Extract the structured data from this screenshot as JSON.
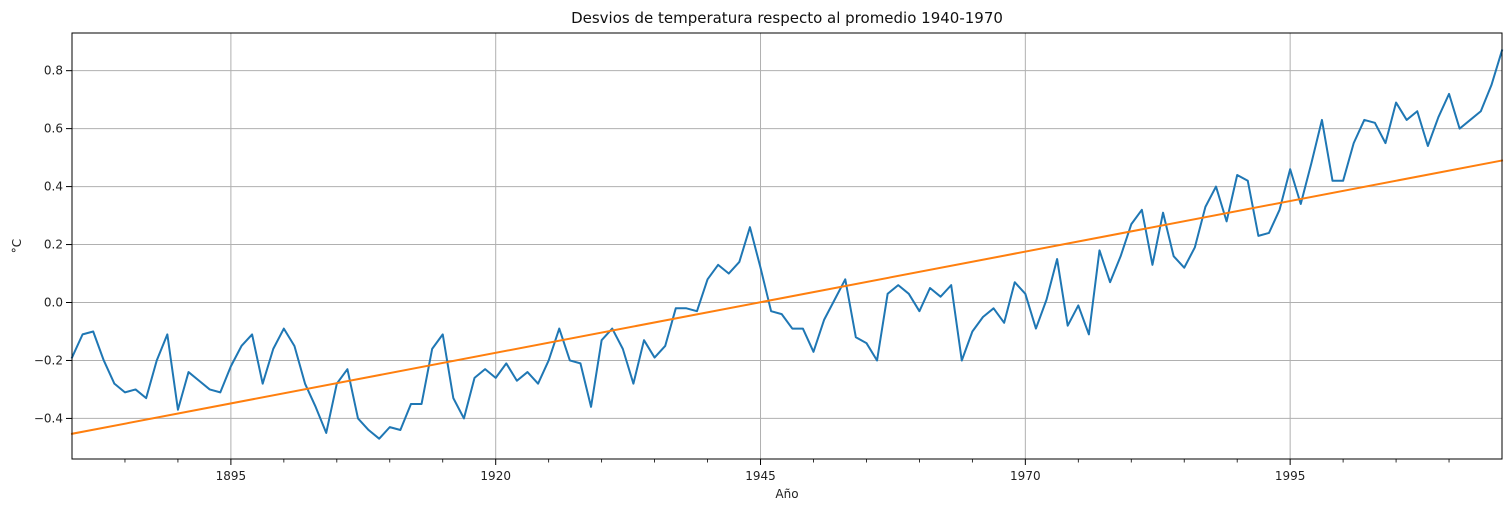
{
  "chart_data": {
    "type": "line",
    "title": "Desvios de temperatura respecto al promedio 1940-1970",
    "xlabel": "Año",
    "ylabel": "°C",
    "xlim": [
      1880,
      2015
    ],
    "ylim": [
      -0.54,
      0.93
    ],
    "grid": true,
    "legend": "none",
    "x_major_ticks": [
      1895,
      1920,
      1945,
      1970,
      1995
    ],
    "x_minor_ticks": [
      1885,
      1890,
      1900,
      1905,
      1910,
      1915,
      1925,
      1930,
      1935,
      1940,
      1950,
      1955,
      1960,
      1965,
      1975,
      1980,
      1985,
      1990,
      2000,
      2005,
      2010
    ],
    "y_ticks": [
      -0.4,
      -0.2,
      0.0,
      0.2,
      0.4,
      0.6,
      0.8
    ],
    "y_tick_labels": [
      "−0.4",
      "−0.2",
      "0.0",
      "0.2",
      "0.4",
      "0.6",
      "0.8"
    ],
    "series": [
      {
        "color": "#1f77b4",
        "x": [
          1880,
          1881,
          1882,
          1883,
          1884,
          1885,
          1886,
          1887,
          1888,
          1889,
          1890,
          1891,
          1892,
          1893,
          1894,
          1895,
          1896,
          1897,
          1898,
          1899,
          1900,
          1901,
          1902,
          1903,
          1904,
          1905,
          1906,
          1907,
          1908,
          1909,
          1910,
          1911,
          1912,
          1913,
          1914,
          1915,
          1916,
          1917,
          1918,
          1919,
          1920,
          1921,
          1922,
          1923,
          1924,
          1925,
          1926,
          1927,
          1928,
          1929,
          1930,
          1931,
          1932,
          1933,
          1934,
          1935,
          1936,
          1937,
          1938,
          1939,
          1940,
          1941,
          1942,
          1943,
          1944,
          1945,
          1946,
          1947,
          1948,
          1949,
          1950,
          1951,
          1952,
          1953,
          1954,
          1955,
          1956,
          1957,
          1958,
          1959,
          1960,
          1961,
          1962,
          1963,
          1964,
          1965,
          1966,
          1967,
          1968,
          1969,
          1970,
          1971,
          1972,
          1973,
          1974,
          1975,
          1976,
          1977,
          1978,
          1979,
          1980,
          1981,
          1982,
          1983,
          1984,
          1985,
          1986,
          1987,
          1988,
          1989,
          1990,
          1991,
          1992,
          1993,
          1994,
          1995,
          1996,
          1997,
          1998,
          1999,
          2000,
          2001,
          2002,
          2003,
          2004,
          2005,
          2006,
          2007,
          2008,
          2009,
          2010,
          2011,
          2012,
          2013,
          2014,
          2015
        ],
        "values": [
          -0.19,
          -0.11,
          -0.1,
          -0.2,
          -0.28,
          -0.31,
          -0.3,
          -0.33,
          -0.2,
          -0.11,
          -0.37,
          -0.24,
          -0.27,
          -0.3,
          -0.31,
          -0.22,
          -0.15,
          -0.11,
          -0.28,
          -0.16,
          -0.09,
          -0.15,
          -0.28,
          -0.36,
          -0.45,
          -0.28,
          -0.23,
          -0.4,
          -0.44,
          -0.47,
          -0.43,
          -0.44,
          -0.35,
          -0.35,
          -0.16,
          -0.11,
          -0.33,
          -0.4,
          -0.26,
          -0.23,
          -0.26,
          -0.21,
          -0.27,
          -0.24,
          -0.28,
          -0.2,
          -0.09,
          -0.2,
          -0.21,
          -0.36,
          -0.13,
          -0.09,
          -0.16,
          -0.28,
          -0.13,
          -0.19,
          -0.15,
          -0.02,
          -0.02,
          -0.03,
          0.08,
          0.13,
          0.1,
          0.14,
          0.26,
          0.12,
          -0.03,
          -0.04,
          -0.09,
          -0.09,
          -0.17,
          -0.06,
          0.01,
          0.08,
          -0.12,
          -0.14,
          -0.2,
          0.03,
          0.06,
          0.03,
          -0.03,
          0.05,
          0.02,
          0.06,
          -0.2,
          -0.1,
          -0.05,
          -0.02,
          -0.07,
          0.07,
          0.03,
          -0.09,
          0.01,
          0.15,
          -0.08,
          -0.01,
          -0.11,
          0.18,
          0.07,
          0.16,
          0.27,
          0.32,
          0.13,
          0.31,
          0.16,
          0.12,
          0.19,
          0.33,
          0.4,
          0.28,
          0.44,
          0.42,
          0.23,
          0.24,
          0.32,
          0.46,
          0.34,
          0.48,
          0.63,
          0.42,
          0.42,
          0.55,
          0.63,
          0.62,
          0.55,
          0.69,
          0.63,
          0.66,
          0.54,
          0.64,
          0.72,
          0.6,
          0.63,
          0.66,
          0.75,
          0.87
        ]
      },
      {
        "color": "#ff7f0e",
        "x": [
          1880,
          2015
        ],
        "values": [
          -0.453,
          0.49
        ]
      }
    ]
  }
}
